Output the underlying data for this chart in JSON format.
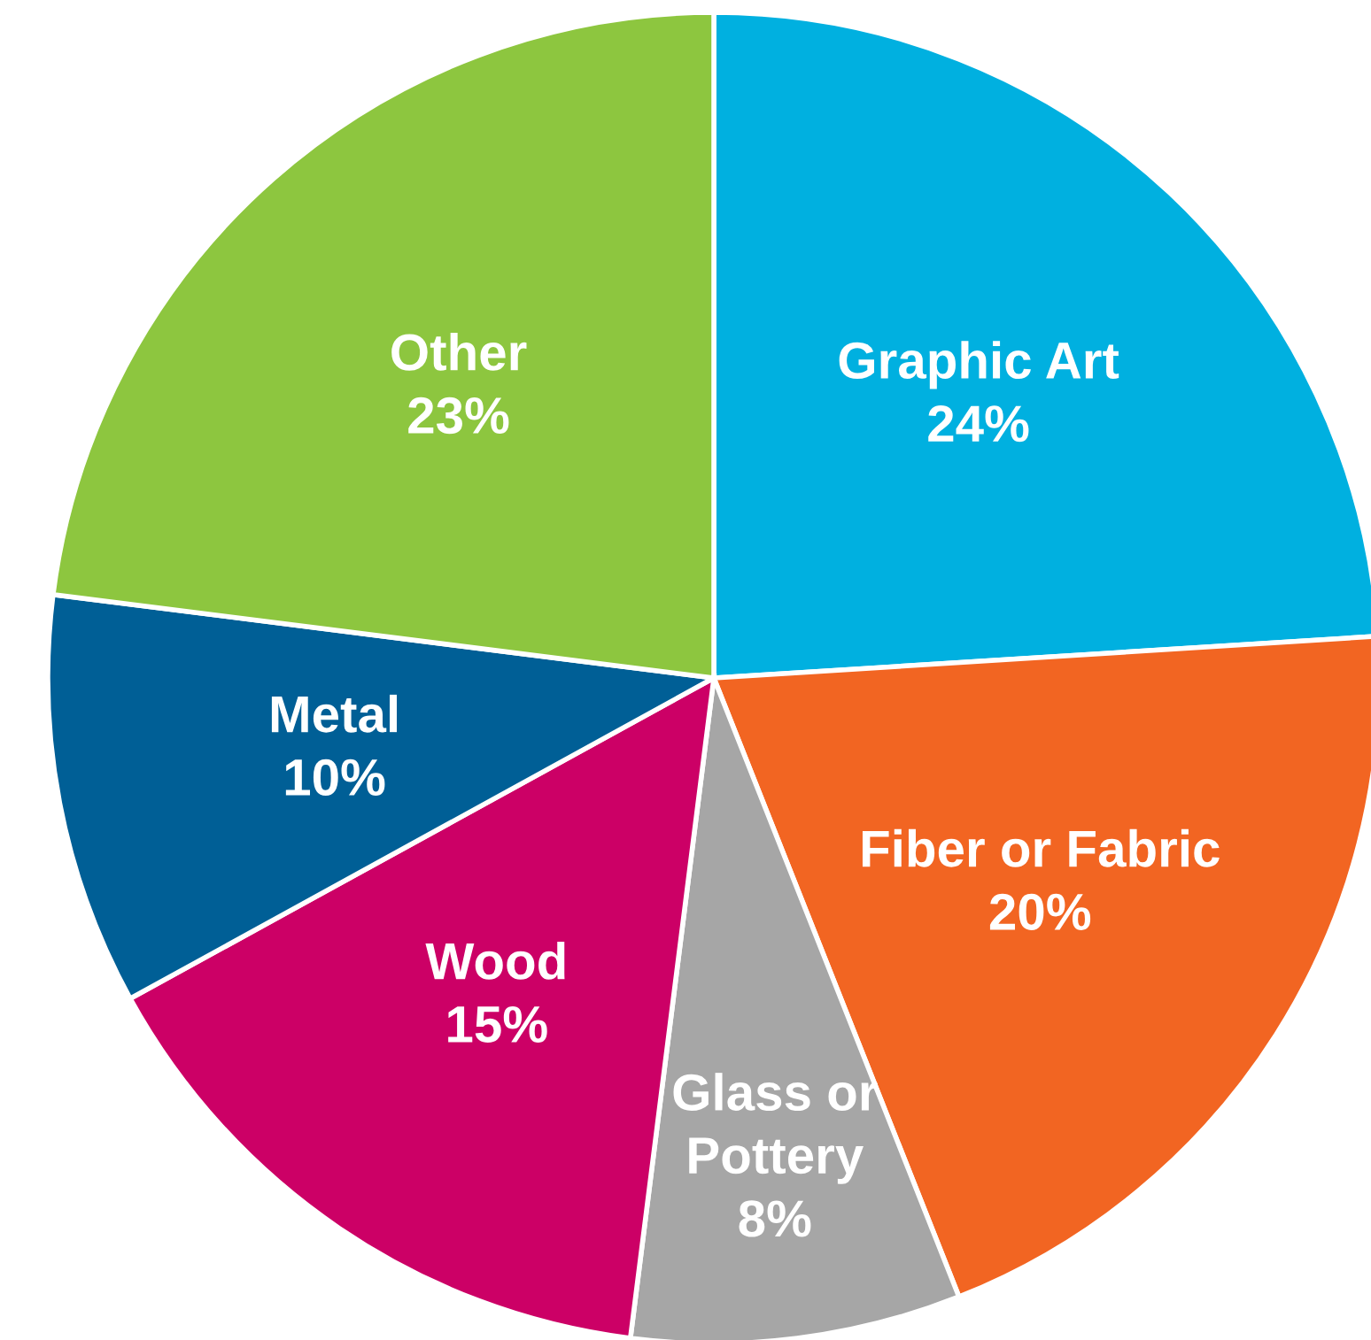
{
  "chart_data": {
    "type": "pie",
    "categories": [
      "Graphic Art",
      "Fiber or Fabric",
      "Glass or Pottery",
      "Wood",
      "Metal",
      "Other"
    ],
    "values": [
      24,
      20,
      8,
      15,
      10,
      23
    ],
    "value_labels": [
      "24%",
      "20%",
      "8%",
      "15%",
      "10%",
      "23%"
    ],
    "colors": [
      "#00b0e0",
      "#f26522",
      "#a6a6a6",
      "#cc0066",
      "#005f96",
      "#8dc63f"
    ],
    "legend": false
  }
}
